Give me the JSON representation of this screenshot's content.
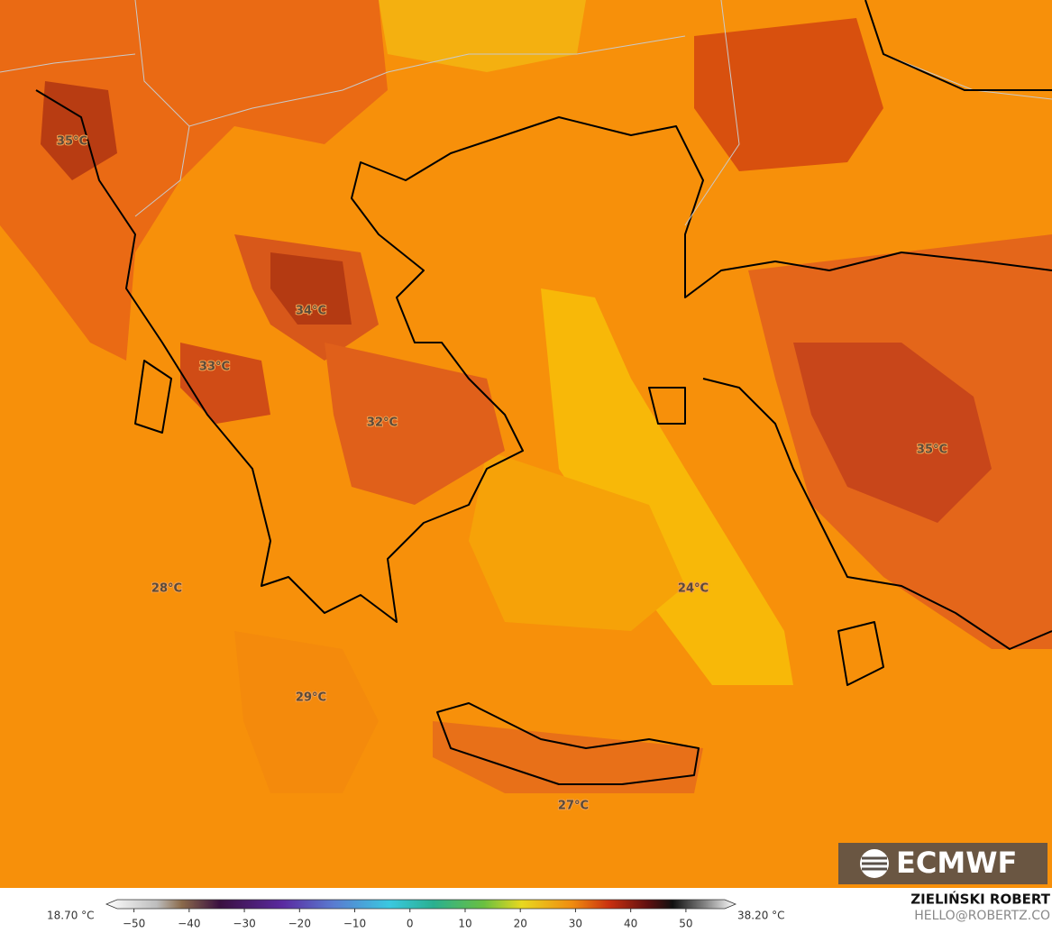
{
  "map": {
    "labels": [
      "35°C",
      "34°C",
      "33°C",
      "32°C",
      "35°C",
      "28°C",
      "24°C",
      "29°C",
      "27°C"
    ]
  },
  "colorbar": {
    "min_label": "18.70 °C",
    "max_label": "38.20 °C",
    "range": [
      -55,
      59
    ],
    "ticks": [
      {
        "value": -50,
        "label": "−50"
      },
      {
        "value": -40,
        "label": "−40"
      },
      {
        "value": -30,
        "label": "−30"
      },
      {
        "value": -20,
        "label": "−20"
      },
      {
        "value": -10,
        "label": "−10"
      },
      0,
      10,
      20,
      30,
      40,
      50
    ]
  },
  "logo": "ECMWF",
  "credit": {
    "name": "ZIELIŃSKI ROBERT",
    "email": "HELLO@ROBERTZ.CO"
  }
}
